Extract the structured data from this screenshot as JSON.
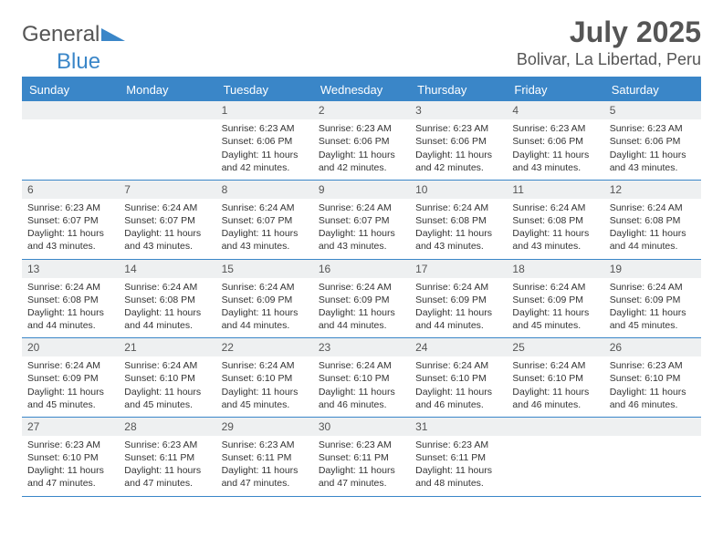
{
  "logo": {
    "text_general": "General",
    "text_blue": "Blue"
  },
  "header": {
    "month": "July 2025",
    "location": "Bolivar, La Libertad, Peru"
  },
  "colors": {
    "brand": "#3a86c8",
    "header_text": "#ffffff",
    "daynum_bg": "#eef0f1",
    "text": "#333333"
  },
  "weekdays": [
    "Sunday",
    "Monday",
    "Tuesday",
    "Wednesday",
    "Thursday",
    "Friday",
    "Saturday"
  ],
  "weeks": [
    [
      {
        "empty": true
      },
      {
        "empty": true
      },
      {
        "day": "1",
        "sunrise": "Sunrise: 6:23 AM",
        "sunset": "Sunset: 6:06 PM",
        "daylight": "Daylight: 11 hours and 42 minutes."
      },
      {
        "day": "2",
        "sunrise": "Sunrise: 6:23 AM",
        "sunset": "Sunset: 6:06 PM",
        "daylight": "Daylight: 11 hours and 42 minutes."
      },
      {
        "day": "3",
        "sunrise": "Sunrise: 6:23 AM",
        "sunset": "Sunset: 6:06 PM",
        "daylight": "Daylight: 11 hours and 42 minutes."
      },
      {
        "day": "4",
        "sunrise": "Sunrise: 6:23 AM",
        "sunset": "Sunset: 6:06 PM",
        "daylight": "Daylight: 11 hours and 43 minutes."
      },
      {
        "day": "5",
        "sunrise": "Sunrise: 6:23 AM",
        "sunset": "Sunset: 6:06 PM",
        "daylight": "Daylight: 11 hours and 43 minutes."
      }
    ],
    [
      {
        "day": "6",
        "sunrise": "Sunrise: 6:23 AM",
        "sunset": "Sunset: 6:07 PM",
        "daylight": "Daylight: 11 hours and 43 minutes."
      },
      {
        "day": "7",
        "sunrise": "Sunrise: 6:24 AM",
        "sunset": "Sunset: 6:07 PM",
        "daylight": "Daylight: 11 hours and 43 minutes."
      },
      {
        "day": "8",
        "sunrise": "Sunrise: 6:24 AM",
        "sunset": "Sunset: 6:07 PM",
        "daylight": "Daylight: 11 hours and 43 minutes."
      },
      {
        "day": "9",
        "sunrise": "Sunrise: 6:24 AM",
        "sunset": "Sunset: 6:07 PM",
        "daylight": "Daylight: 11 hours and 43 minutes."
      },
      {
        "day": "10",
        "sunrise": "Sunrise: 6:24 AM",
        "sunset": "Sunset: 6:08 PM",
        "daylight": "Daylight: 11 hours and 43 minutes."
      },
      {
        "day": "11",
        "sunrise": "Sunrise: 6:24 AM",
        "sunset": "Sunset: 6:08 PM",
        "daylight": "Daylight: 11 hours and 43 minutes."
      },
      {
        "day": "12",
        "sunrise": "Sunrise: 6:24 AM",
        "sunset": "Sunset: 6:08 PM",
        "daylight": "Daylight: 11 hours and 44 minutes."
      }
    ],
    [
      {
        "day": "13",
        "sunrise": "Sunrise: 6:24 AM",
        "sunset": "Sunset: 6:08 PM",
        "daylight": "Daylight: 11 hours and 44 minutes."
      },
      {
        "day": "14",
        "sunrise": "Sunrise: 6:24 AM",
        "sunset": "Sunset: 6:08 PM",
        "daylight": "Daylight: 11 hours and 44 minutes."
      },
      {
        "day": "15",
        "sunrise": "Sunrise: 6:24 AM",
        "sunset": "Sunset: 6:09 PM",
        "daylight": "Daylight: 11 hours and 44 minutes."
      },
      {
        "day": "16",
        "sunrise": "Sunrise: 6:24 AM",
        "sunset": "Sunset: 6:09 PM",
        "daylight": "Daylight: 11 hours and 44 minutes."
      },
      {
        "day": "17",
        "sunrise": "Sunrise: 6:24 AM",
        "sunset": "Sunset: 6:09 PM",
        "daylight": "Daylight: 11 hours and 44 minutes."
      },
      {
        "day": "18",
        "sunrise": "Sunrise: 6:24 AM",
        "sunset": "Sunset: 6:09 PM",
        "daylight": "Daylight: 11 hours and 45 minutes."
      },
      {
        "day": "19",
        "sunrise": "Sunrise: 6:24 AM",
        "sunset": "Sunset: 6:09 PM",
        "daylight": "Daylight: 11 hours and 45 minutes."
      }
    ],
    [
      {
        "day": "20",
        "sunrise": "Sunrise: 6:24 AM",
        "sunset": "Sunset: 6:09 PM",
        "daylight": "Daylight: 11 hours and 45 minutes."
      },
      {
        "day": "21",
        "sunrise": "Sunrise: 6:24 AM",
        "sunset": "Sunset: 6:10 PM",
        "daylight": "Daylight: 11 hours and 45 minutes."
      },
      {
        "day": "22",
        "sunrise": "Sunrise: 6:24 AM",
        "sunset": "Sunset: 6:10 PM",
        "daylight": "Daylight: 11 hours and 45 minutes."
      },
      {
        "day": "23",
        "sunrise": "Sunrise: 6:24 AM",
        "sunset": "Sunset: 6:10 PM",
        "daylight": "Daylight: 11 hours and 46 minutes."
      },
      {
        "day": "24",
        "sunrise": "Sunrise: 6:24 AM",
        "sunset": "Sunset: 6:10 PM",
        "daylight": "Daylight: 11 hours and 46 minutes."
      },
      {
        "day": "25",
        "sunrise": "Sunrise: 6:24 AM",
        "sunset": "Sunset: 6:10 PM",
        "daylight": "Daylight: 11 hours and 46 minutes."
      },
      {
        "day": "26",
        "sunrise": "Sunrise: 6:23 AM",
        "sunset": "Sunset: 6:10 PM",
        "daylight": "Daylight: 11 hours and 46 minutes."
      }
    ],
    [
      {
        "day": "27",
        "sunrise": "Sunrise: 6:23 AM",
        "sunset": "Sunset: 6:10 PM",
        "daylight": "Daylight: 11 hours and 47 minutes."
      },
      {
        "day": "28",
        "sunrise": "Sunrise: 6:23 AM",
        "sunset": "Sunset: 6:11 PM",
        "daylight": "Daylight: 11 hours and 47 minutes."
      },
      {
        "day": "29",
        "sunrise": "Sunrise: 6:23 AM",
        "sunset": "Sunset: 6:11 PM",
        "daylight": "Daylight: 11 hours and 47 minutes."
      },
      {
        "day": "30",
        "sunrise": "Sunrise: 6:23 AM",
        "sunset": "Sunset: 6:11 PM",
        "daylight": "Daylight: 11 hours and 47 minutes."
      },
      {
        "day": "31",
        "sunrise": "Sunrise: 6:23 AM",
        "sunset": "Sunset: 6:11 PM",
        "daylight": "Daylight: 11 hours and 48 minutes."
      },
      {
        "empty": true
      },
      {
        "empty": true
      }
    ]
  ]
}
